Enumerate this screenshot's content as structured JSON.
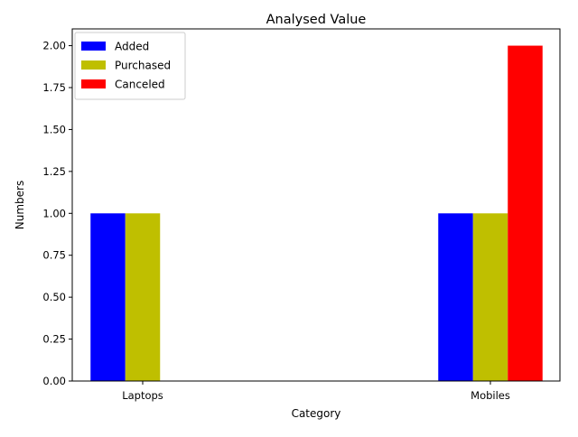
{
  "chart_data": {
    "type": "bar",
    "title": "Analysed Value",
    "xlabel": "Category",
    "ylabel": "Numbers",
    "categories": [
      "Laptops",
      "Mobiles"
    ],
    "series": [
      {
        "name": "Added",
        "color": "#0000ff",
        "values": [
          1,
          1
        ]
      },
      {
        "name": "Purchased",
        "color": "#bfbf00",
        "values": [
          1,
          1
        ]
      },
      {
        "name": "Canceled",
        "color": "#ff0000",
        "values": [
          0,
          2
        ]
      }
    ],
    "ylim": [
      0,
      2.1
    ],
    "yticks": [
      "0.00",
      "0.25",
      "0.50",
      "0.75",
      "1.00",
      "1.25",
      "1.50",
      "1.75",
      "2.00"
    ],
    "grid": false,
    "legend_position": "top-left"
  }
}
